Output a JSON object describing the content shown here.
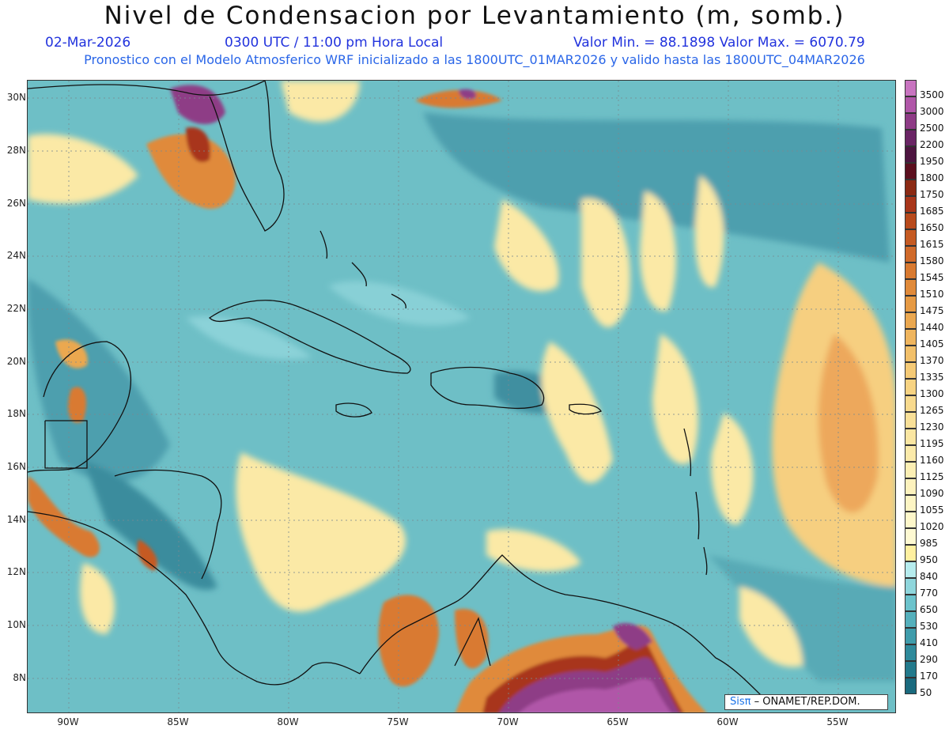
{
  "title": "Nivel de Condensacion por Levantamiento (m, somb.)",
  "date": "02-Mar-2026",
  "time": "0300 UTC / 11:00 pm Hora Local",
  "minmax": "Valor Min. = 88.1898  Valor Max. = 6070.79",
  "run_info": "Pronostico con el Modelo Atmosferico WRF inicializado a las 1800UTC_01MAR2026 y valido hasta las  1800UTC_04MAR2026",
  "lat_labels": [
    "30N",
    "28N",
    "26N",
    "24N",
    "22N",
    "20N",
    "18N",
    "16N",
    "14N",
    "12N",
    "10N",
    "8N"
  ],
  "lon_labels": [
    "90W",
    "85W",
    "80W",
    "75W",
    "70W",
    "65W",
    "60W",
    "55W"
  ],
  "legend": {
    "labels": [
      "3500",
      "3000",
      "2500",
      "2200",
      "1950",
      "1800",
      "1750",
      "1685",
      "1650",
      "1615",
      "1580",
      "1545",
      "1510",
      "1475",
      "1440",
      "1405",
      "1370",
      "1335",
      "1300",
      "1265",
      "1230",
      "1195",
      "1160",
      "1125",
      "1090",
      "1055",
      "1020",
      "985",
      "950",
      "840",
      "770",
      "650",
      "530",
      "410",
      "290",
      "170",
      "50"
    ],
    "colors": [
      "#c874c0",
      "#b057a8",
      "#8e3c86",
      "#6a2565",
      "#4d1540",
      "#5b0f1e",
      "#8b2a14",
      "#a8361a",
      "#b84a1c",
      "#c55a22",
      "#d06a2a",
      "#d97a30",
      "#e08a3a",
      "#e69a44",
      "#eba850",
      "#efb55e",
      "#f2c06a",
      "#f5ca76",
      "#f7d382",
      "#f8da8e",
      "#f9e098",
      "#fae6a2",
      "#fbeaaa",
      "#fcefb4",
      "#fdf2bd",
      "#fdf5c4",
      "#fef7ca",
      "#fef9d2",
      "#fff0a0",
      "#b6ecee",
      "#8fd6dc",
      "#6cc3cc",
      "#55b0bc",
      "#3f9cab",
      "#2f8a9b",
      "#237a8c",
      "#1a6a7e"
    ]
  },
  "credit": {
    "brand": "Sisπ",
    "text": "– ONAMET/REP.DOM."
  }
}
